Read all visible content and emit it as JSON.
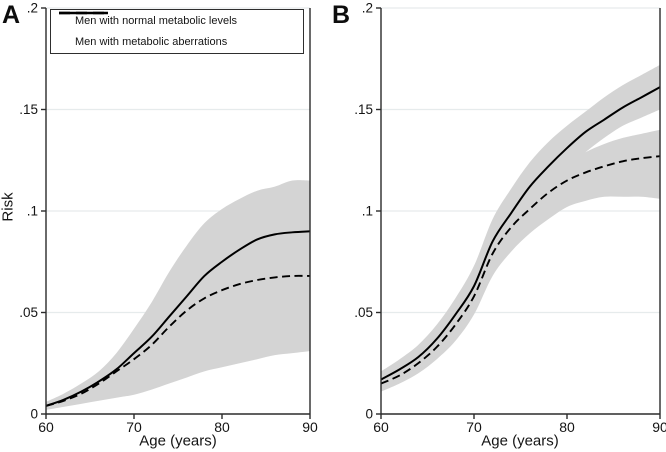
{
  "figure": {
    "y_axis_label": "Risk",
    "x_axis_label": "Age (years)",
    "colors": {
      "band": "#d4d4d4",
      "line": "#000000",
      "grid": "#e6ebec",
      "axis": "#2b2b2b",
      "text": "#141414"
    },
    "legend": {
      "items": [
        {
          "style": "solid",
          "label": "Men with normal metabolic levels"
        },
        {
          "style": "dashed",
          "label": "Men with metabolic aberrations"
        }
      ]
    }
  },
  "chart_data": {
    "type": "line",
    "xlabel": "Age (years)",
    "ylabel": "Risk",
    "xlim": [
      60,
      90
    ],
    "ylim": [
      0,
      0.2
    ],
    "x_tick_values": [
      60,
      70,
      80,
      90
    ],
    "x_tick_labels": [
      "60",
      "70",
      "80",
      "90"
    ],
    "y_tick_values": [
      0,
      0.05,
      0.1,
      0.15,
      0.2
    ],
    "y_tick_labels": [
      "0",
      ".05",
      ".1",
      ".15",
      ".2"
    ],
    "grid": "horizontal",
    "legend_position": "top-left-of-panel-A",
    "x": [
      60,
      62,
      64,
      66,
      68,
      70,
      72,
      74,
      76,
      78,
      80,
      82,
      84,
      86,
      88,
      90
    ],
    "panels": [
      {
        "letter": "A",
        "series": [
          {
            "name": "Men with normal metabolic levels",
            "style": "solid",
            "values": [
              0.004,
              0.007,
              0.011,
              0.016,
              0.022,
              0.03,
              0.038,
              0.048,
              0.058,
              0.068,
              0.075,
              0.081,
              0.086,
              0.0885,
              0.0895,
              0.09
            ]
          },
          {
            "name": "Men with metabolic aberrations",
            "style": "dashed",
            "values": [
              0.004,
              0.0065,
              0.01,
              0.015,
              0.021,
              0.027,
              0.034,
              0.043,
              0.051,
              0.057,
              0.061,
              0.064,
              0.066,
              0.0673,
              0.068,
              0.068
            ]
          }
        ],
        "bands": [
          {
            "for": "both series (pooled confidence region)",
            "upper": [
              0.006,
              0.01,
              0.015,
              0.021,
              0.03,
              0.042,
              0.055,
              0.07,
              0.083,
              0.094,
              0.101,
              0.106,
              0.11,
              0.112,
              0.115,
              0.115
            ],
            "lower": [
              0.002,
              0.0035,
              0.005,
              0.0065,
              0.008,
              0.0095,
              0.012,
              0.015,
              0.018,
              0.021,
              0.023,
              0.025,
              0.027,
              0.029,
              0.03,
              0.031
            ]
          }
        ]
      },
      {
        "letter": "B",
        "series": [
          {
            "name": "Men with normal metabolic levels",
            "style": "solid",
            "values": [
              0.017,
              0.022,
              0.028,
              0.037,
              0.049,
              0.063,
              0.085,
              0.099,
              0.112,
              0.122,
              0.131,
              0.139,
              0.145,
              0.151,
              0.156,
              0.161
            ]
          },
          {
            "name": "Men with metabolic aberrations",
            "style": "dashed",
            "values": [
              0.015,
              0.019,
              0.025,
              0.033,
              0.044,
              0.058,
              0.079,
              0.092,
              0.101,
              0.109,
              0.115,
              0.119,
              0.122,
              0.1245,
              0.126,
              0.127
            ]
          }
        ],
        "bands": [
          {
            "for": "Men with normal metabolic levels",
            "upper": [
              0.021,
              0.027,
              0.034,
              0.044,
              0.057,
              0.073,
              0.096,
              0.111,
              0.124,
              0.134,
              0.142,
              0.149,
              0.156,
              0.162,
              0.167,
              0.172
            ],
            "lower": [
              0.0135,
              0.018,
              0.023,
              0.031,
              0.041,
              0.054,
              0.074,
              0.088,
              0.1,
              0.111,
              0.121,
              0.129,
              0.136,
              0.142,
              0.146,
              0.15
            ]
          },
          {
            "for": "Men with metabolic aberrations",
            "upper": [
              0.018,
              0.023,
              0.029,
              0.038,
              0.05,
              0.066,
              0.088,
              0.101,
              0.111,
              0.118,
              0.124,
              0.129,
              0.133,
              0.136,
              0.138,
              0.14
            ],
            "lower": [
              0.011,
              0.015,
              0.02,
              0.027,
              0.036,
              0.049,
              0.068,
              0.08,
              0.089,
              0.096,
              0.102,
              0.105,
              0.107,
              0.107,
              0.107,
              0.106
            ]
          }
        ]
      }
    ]
  }
}
